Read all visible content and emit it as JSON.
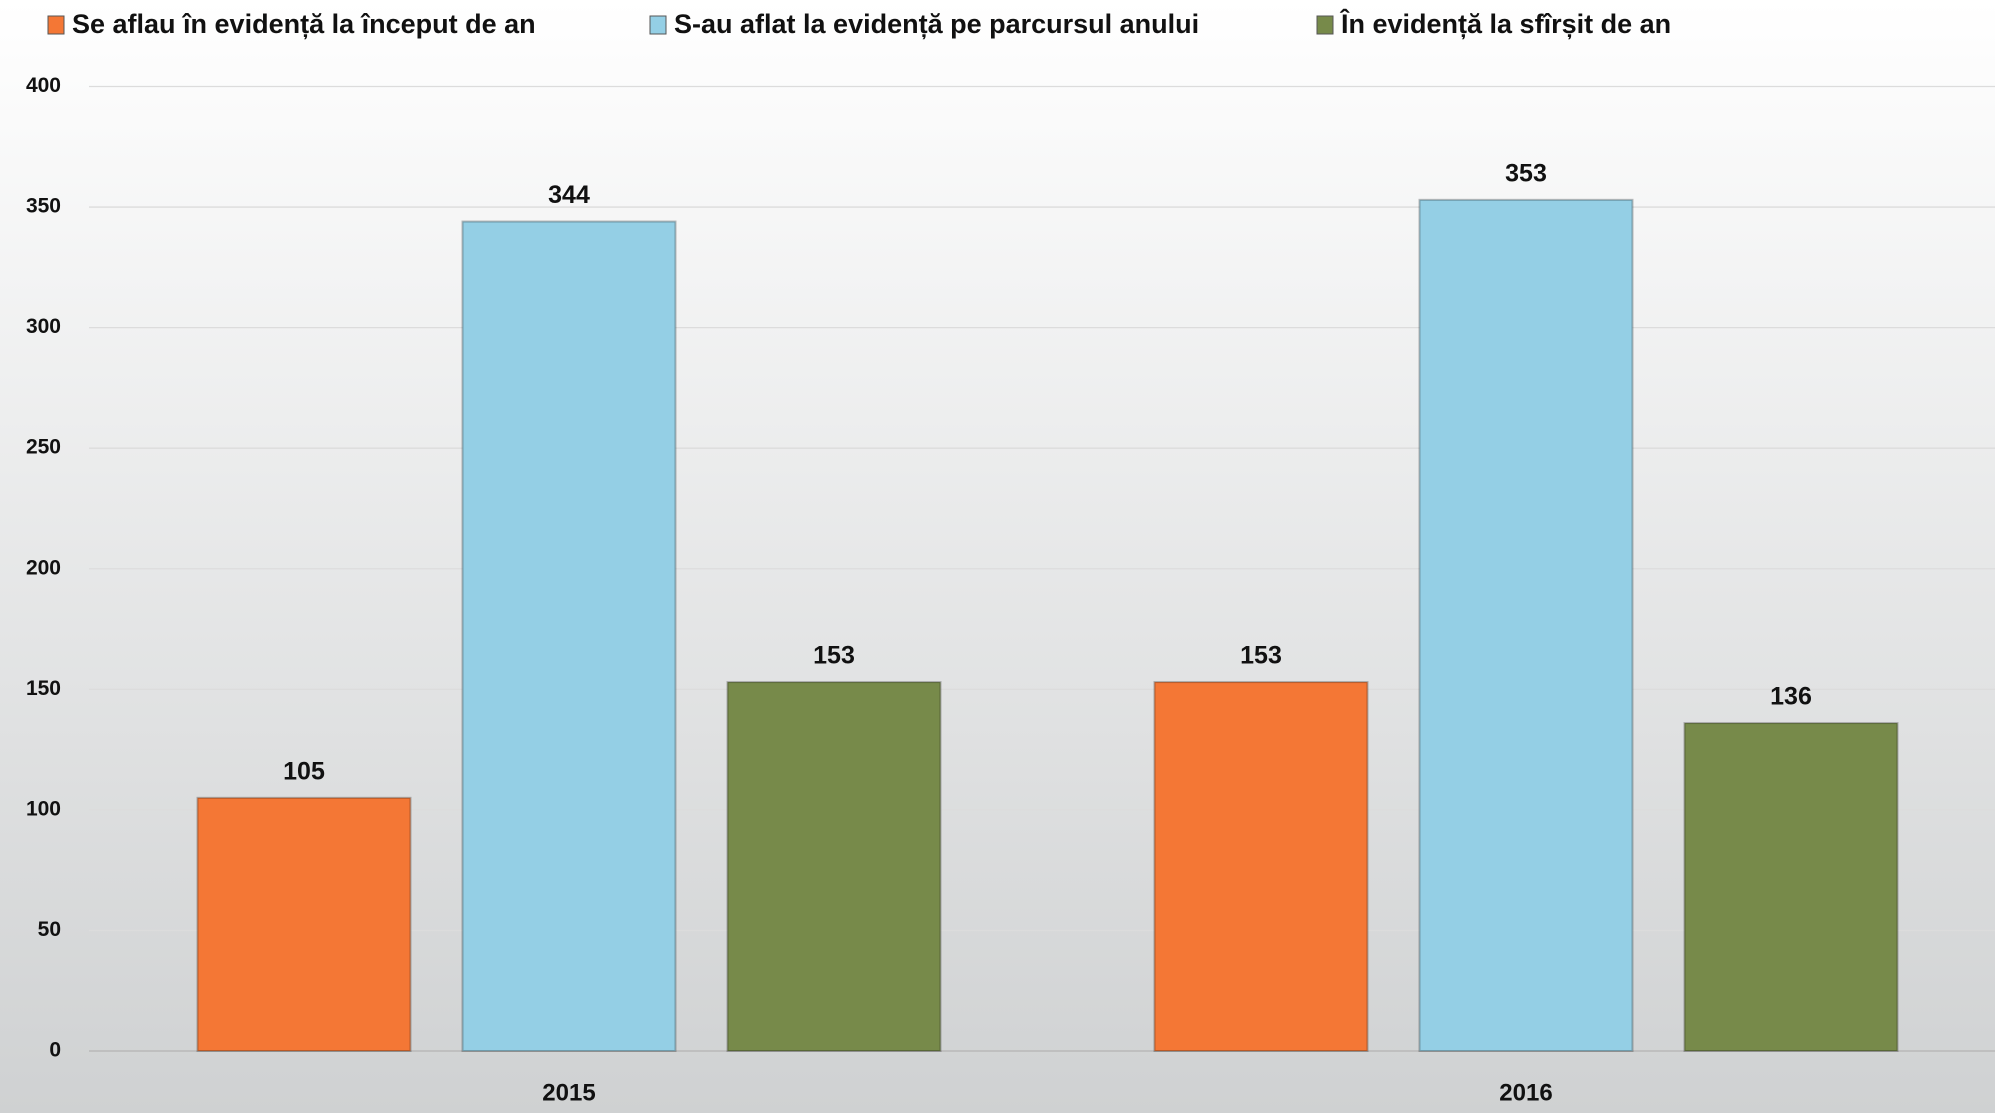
{
  "chart_data": {
    "type": "bar",
    "categories": [
      "2015",
      "2016"
    ],
    "series": [
      {
        "name": "Se aflau în evidență la început de an",
        "color": "#f47735",
        "values": [
          105,
          153
        ]
      },
      {
        "name": "S-au aflat la evidență pe parcursul anului",
        "color": "#94cfe5",
        "values": [
          344,
          353
        ]
      },
      {
        "name": "În evidență la sfîrșit de an",
        "color": "#778a4a",
        "values": [
          153,
          136
        ]
      }
    ],
    "ylim": [
      0,
      400
    ],
    "yticks": [
      0,
      50,
      100,
      150,
      200,
      250,
      300,
      350,
      400
    ],
    "grid": true,
    "legend": "top"
  }
}
